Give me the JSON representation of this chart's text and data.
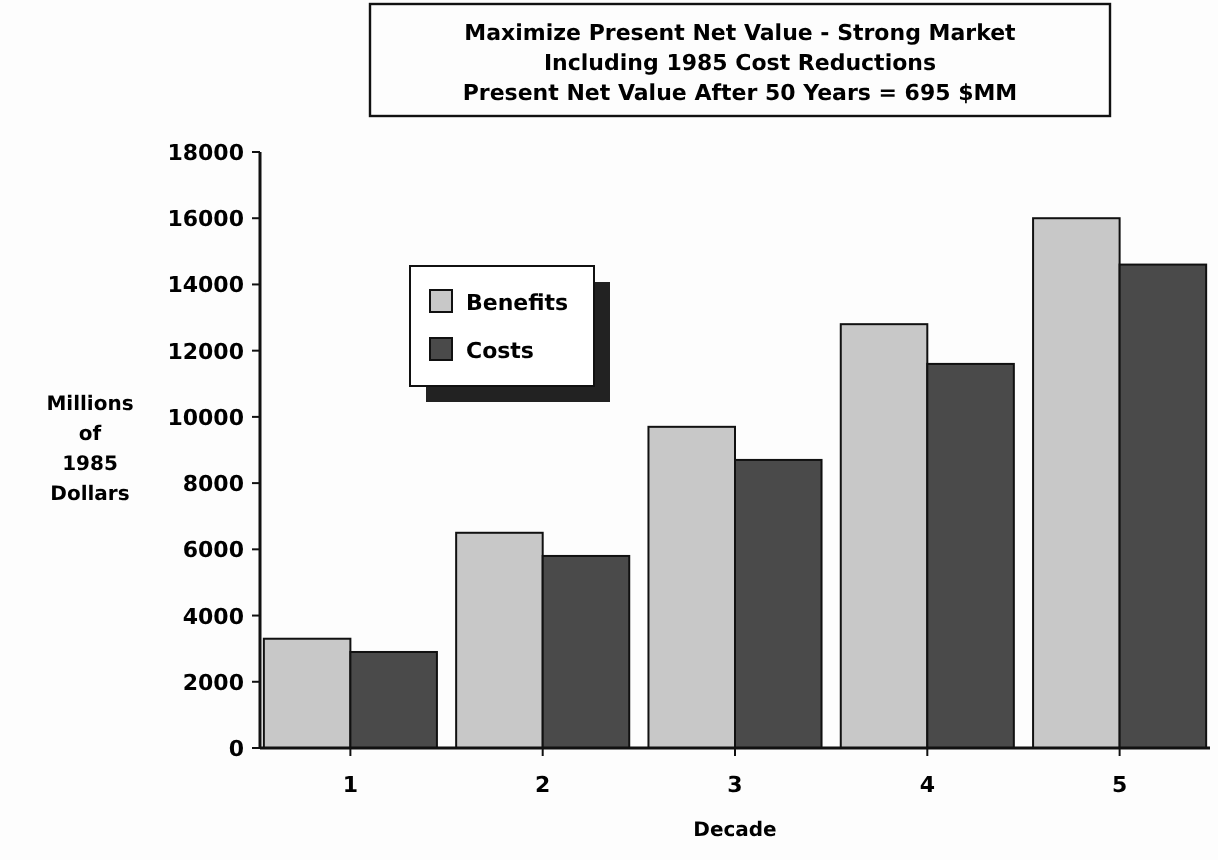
{
  "chart_data": {
    "type": "bar",
    "title": "Maximize Present Net Value - Strong Market",
    "subtitle": "Including 1985 Cost Reductions\nPresent Net Value After 50 Years =  695 $MM",
    "xlabel": "Decade",
    "ylabel": "Millions\nof\n1985\nDollars",
    "categories": [
      "1",
      "2",
      "3",
      "4",
      "5"
    ],
    "series": [
      {
        "name": "Benefits",
        "color": "#c8c8c8",
        "values": [
          3300,
          6500,
          9700,
          12800,
          16000
        ]
      },
      {
        "name": "Costs",
        "color": "#4a4a4a",
        "values": [
          2900,
          5800,
          8700,
          11600,
          14600
        ]
      }
    ],
    "ylim": [
      0,
      18000
    ],
    "yticks": [
      0,
      2000,
      4000,
      6000,
      8000,
      10000,
      12000,
      14000,
      16000,
      18000
    ],
    "grid": false,
    "legend": "top left"
  }
}
